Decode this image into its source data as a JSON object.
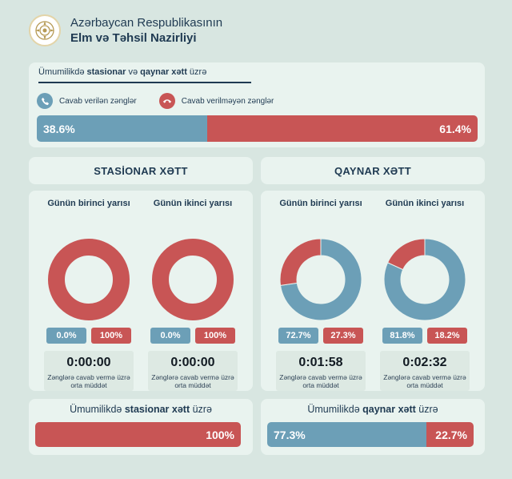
{
  "header": {
    "org_line1": "Azərbaycan Respublikasının",
    "org_line2": "Elm və Təhsil Nazirliyi"
  },
  "overall": {
    "title_pre": "Ümumilikdə ",
    "title_b1": "stasionar",
    "title_mid": " və ",
    "title_b2": "qaynar xətt",
    "title_post": " üzrə",
    "legend_answered": "Cavab verilən zənglər",
    "legend_unanswered": "Cavab verilməyən zənglər",
    "answered_label": "38.6%",
    "unanswered_label": "61.4%"
  },
  "stationary": {
    "title": "STASİONAR XƏTT",
    "halves": [
      {
        "title": "Günün birinci yarısı",
        "answered_label": "0.0%",
        "unanswered_label": "100%",
        "avg_time": "0:00:00",
        "caption": "Zənglərə cavab vermə üzrə orta müddət"
      },
      {
        "title": "Günün ikinci yarısı",
        "answered_label": "0.0%",
        "unanswered_label": "100%",
        "avg_time": "0:00:00",
        "caption": "Zənglərə cavab vermə üzrə orta müddət"
      }
    ],
    "total_pre": "Ümumilikdə ",
    "total_b": "stasionar xətt",
    "total_post": " üzrə",
    "total_unanswered_label": "100%"
  },
  "hotline": {
    "title": "QAYNAR XƏTT",
    "halves": [
      {
        "title": "Günün birinci yarısı",
        "answered_label": "72.7%",
        "unanswered_label": "27.3%",
        "avg_time": "0:01:58",
        "caption": "Zənglərə cavab vermə üzrə orta müddət"
      },
      {
        "title": "Günün ikinci yarısı",
        "answered_label": "81.8%",
        "unanswered_label": "18.2%",
        "avg_time": "0:02:32",
        "caption": "Zənglərə cavab vermə üzrə orta müddət"
      }
    ],
    "total_pre": "Ümumilikdə ",
    "total_b": "qaynar xətt",
    "total_post": " üzrə",
    "total_answered_label": "77.3%",
    "total_unanswered_label": "22.7%"
  },
  "colors": {
    "answered": "#6c9fb7",
    "unanswered": "#c85555",
    "text": "#1f3a52"
  },
  "chart_data": [
    {
      "type": "bar",
      "categories": [
        "Cavab verilən zənglər",
        "Cavab verilməyən zənglər"
      ],
      "values": [
        38.6,
        61.4
      ],
      "title": "Ümumilikdə stasionar və qaynar xətt üzrə"
    },
    {
      "type": "pie",
      "categories": [
        "Cavab verilən zənglər",
        "Cavab verilməyən zənglər"
      ],
      "values": [
        0.0,
        100
      ],
      "title": "STASİONAR XƏTT — Günün birinci yarısı"
    },
    {
      "type": "pie",
      "categories": [
        "Cavab verilən zənglər",
        "Cavab verilməyən zənglər"
      ],
      "values": [
        0.0,
        100
      ],
      "title": "STASİONAR XƏTT — Günün ikinci yarısı"
    },
    {
      "type": "pie",
      "categories": [
        "Cavab verilən zənglər",
        "Cavab verilməyən zənglər"
      ],
      "values": [
        72.7,
        27.3
      ],
      "title": "QAYNAR XƏTT — Günün birinci yarısı"
    },
    {
      "type": "pie",
      "categories": [
        "Cavab verilən zənglər",
        "Cavab verilməyən zənglər"
      ],
      "values": [
        81.8,
        18.2
      ],
      "title": "QAYNAR XƏTT — Günün ikinci yarısı"
    },
    {
      "type": "bar",
      "categories": [
        "Cavab verilən zənglər",
        "Cavab verilməyən zənglər"
      ],
      "values": [
        0.0,
        100
      ],
      "title": "Ümumilikdə stasionar xətt üzrə"
    },
    {
      "type": "bar",
      "categories": [
        "Cavab verilən zənglər",
        "Cavab verilməyən zənglər"
      ],
      "values": [
        77.3,
        22.7
      ],
      "title": "Ümumilikdə qaynar xətt üzrə"
    }
  ]
}
